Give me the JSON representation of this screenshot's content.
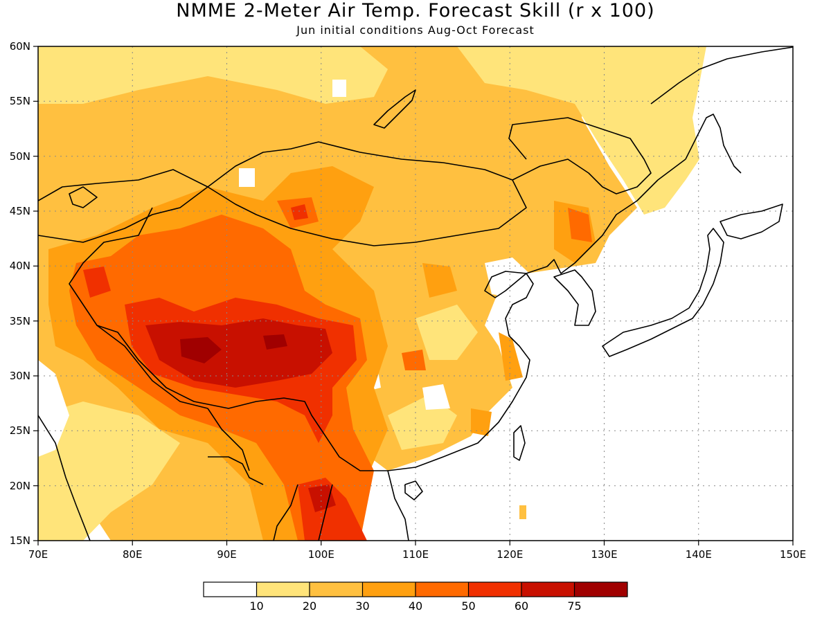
{
  "title": "NMME 2-Meter Air Temp. Forecast Skill (r x 100)",
  "subtitle": "Jun initial conditions  Aug-Oct Forecast",
  "map": {
    "lon_range": [
      70,
      150
    ],
    "lat_range": [
      15,
      60
    ],
    "lon_ticks": [
      "70E",
      "80E",
      "90E",
      "100E",
      "110E",
      "120E",
      "130E",
      "140E",
      "150E"
    ],
    "lat_ticks": [
      "15N",
      "20N",
      "25N",
      "30N",
      "35N",
      "40N",
      "45N",
      "50N",
      "55N",
      "60N"
    ],
    "grid": "dotted"
  },
  "colorbar": {
    "labels": [
      "10",
      "20",
      "30",
      "40",
      "50",
      "60",
      "75"
    ],
    "colors": [
      "#ffffff",
      "#ffe47a",
      "#ffc040",
      "#ffa010",
      "#ff6a00",
      "#f03000",
      "#c81000",
      "#a00000"
    ]
  }
}
